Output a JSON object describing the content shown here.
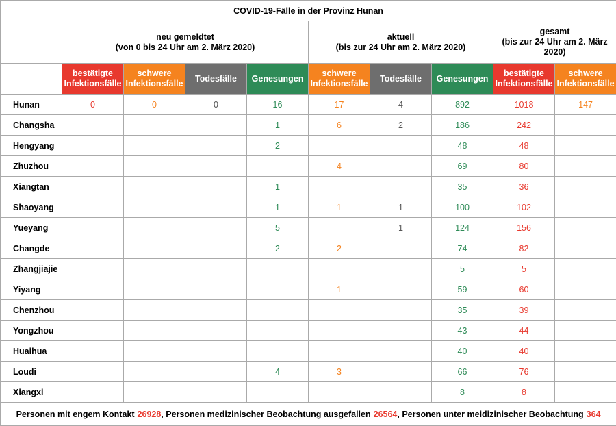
{
  "title": "COVID-19-Fälle in der Provinz Hunan",
  "groups": [
    {
      "title": "neu gemeldtet",
      "subtitle": "(von 0 bis 24 Uhr am 2. März 2020)",
      "span": 4
    },
    {
      "title": "aktuell",
      "subtitle": "(bis zur 24 Uhr am 2. März 2020)",
      "span": 3
    },
    {
      "title": "gesamt",
      "subtitle": "(bis zur 24 Uhr am 2. März 2020)",
      "span": 2
    }
  ],
  "columns": [
    {
      "lines": [
        "bestätigte",
        "Infektionsfälle"
      ],
      "bg": "#e8392e",
      "color": "#e8392e"
    },
    {
      "lines": [
        "schwere",
        "Infektionsfälle"
      ],
      "bg": "#f5831f",
      "color": "#f5831f"
    },
    {
      "lines": [
        "Todesfälle"
      ],
      "bg": "#6e6e6e",
      "color": "#555555"
    },
    {
      "lines": [
        "Genesungen"
      ],
      "bg": "#2e8b57",
      "color": "#2e8b57"
    },
    {
      "lines": [
        "schwere",
        "Infektionsfälle"
      ],
      "bg": "#f5831f",
      "color": "#f5831f"
    },
    {
      "lines": [
        "Todesfälle"
      ],
      "bg": "#6e6e6e",
      "color": "#555555"
    },
    {
      "lines": [
        "Genesungen"
      ],
      "bg": "#2e8b57",
      "color": "#2e8b57"
    },
    {
      "lines": [
        "bestätigte",
        "Infektionsfälle"
      ],
      "bg": "#e8392e",
      "color": "#e8392e"
    },
    {
      "lines": [
        "schwere",
        "Infektionsfälle"
      ],
      "bg": "#f5831f",
      "color": "#f5831f"
    }
  ],
  "rows": [
    {
      "name": "Hunan",
      "values": [
        0,
        0,
        0,
        16,
        17,
        4,
        892,
        1018,
        147
      ]
    },
    {
      "name": "Changsha",
      "values": [
        null,
        null,
        null,
        1,
        6,
        2,
        186,
        242,
        null
      ]
    },
    {
      "name": "Hengyang",
      "values": [
        null,
        null,
        null,
        2,
        null,
        null,
        48,
        48,
        null
      ]
    },
    {
      "name": "Zhuzhou",
      "values": [
        null,
        null,
        null,
        null,
        4,
        null,
        69,
        80,
        null
      ]
    },
    {
      "name": "Xiangtan",
      "values": [
        null,
        null,
        null,
        1,
        null,
        null,
        35,
        36,
        null
      ]
    },
    {
      "name": "Shaoyang",
      "values": [
        null,
        null,
        null,
        1,
        1,
        1,
        100,
        102,
        null
      ]
    },
    {
      "name": "Yueyang",
      "values": [
        null,
        null,
        null,
        5,
        null,
        1,
        124,
        156,
        null
      ]
    },
    {
      "name": "Changde",
      "values": [
        null,
        null,
        null,
        2,
        2,
        null,
        74,
        82,
        null
      ]
    },
    {
      "name": "Zhangjiajie",
      "values": [
        null,
        null,
        null,
        null,
        null,
        null,
        5,
        5,
        null
      ]
    },
    {
      "name": "Yiyang",
      "values": [
        null,
        null,
        null,
        null,
        1,
        null,
        59,
        60,
        null
      ]
    },
    {
      "name": "Chenzhou",
      "values": [
        null,
        null,
        null,
        null,
        null,
        null,
        35,
        39,
        null
      ]
    },
    {
      "name": "Yongzhou",
      "values": [
        null,
        null,
        null,
        null,
        null,
        null,
        43,
        44,
        null
      ]
    },
    {
      "name": "Huaihua",
      "values": [
        null,
        null,
        null,
        null,
        null,
        null,
        40,
        40,
        null
      ]
    },
    {
      "name": "Loudi",
      "values": [
        null,
        null,
        null,
        4,
        3,
        null,
        66,
        76,
        null
      ]
    },
    {
      "name": "Xiangxi",
      "values": [
        null,
        null,
        null,
        null,
        null,
        null,
        8,
        8,
        null
      ]
    }
  ],
  "footer": [
    {
      "label": "Personen mit engem Kontakt",
      "value": 26928
    },
    {
      "label": ", Personen medizinischer Beobachtung ausgefallen",
      "value": 26564
    },
    {
      "label": ", Personen unter meidizinischer Beobachtung",
      "value": 364
    }
  ]
}
